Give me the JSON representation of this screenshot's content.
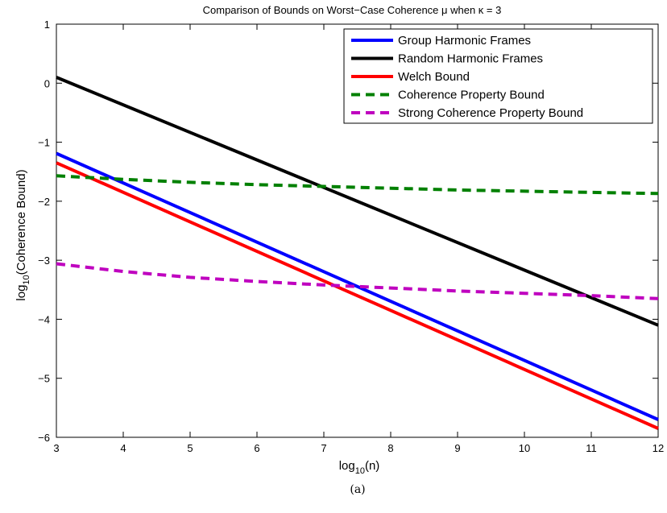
{
  "chart_data": {
    "type": "line",
    "title": "Comparison of Bounds on Worst−Case Coherence μ when κ = 3",
    "xlabel": "log10(n)",
    "ylabel": "log10(Coherence Bound)",
    "xlabel_parts": {
      "prefix": "log",
      "sub": "10",
      "suffix": "(n)"
    },
    "ylabel_parts": {
      "prefix": "log",
      "sub": "10",
      "suffix": "(Coherence Bound)"
    },
    "xlim": [
      3,
      12
    ],
    "ylim": [
      -6,
      1
    ],
    "xticks": [
      "3",
      "4",
      "5",
      "6",
      "7",
      "8",
      "9",
      "10",
      "11",
      "12"
    ],
    "yticks": [
      "1",
      "0",
      "−1",
      "−2",
      "−3",
      "−4",
      "−5",
      "−6"
    ],
    "grid": false,
    "legend_position": "top-right",
    "series": [
      {
        "name": "Group Harmonic Frames",
        "color": "#0000ff",
        "style": "solid",
        "x": [
          3,
          12
        ],
        "y": [
          -1.19,
          -5.7
        ]
      },
      {
        "name": "Random Harmonic Frames",
        "color": "#000000",
        "style": "solid",
        "x": [
          3,
          12
        ],
        "y": [
          0.1,
          -4.1
        ]
      },
      {
        "name": "Welch Bound",
        "color": "#ff0000",
        "style": "solid",
        "x": [
          3,
          12
        ],
        "y": [
          -1.35,
          -5.85
        ]
      },
      {
        "name": "Coherence Property Bound",
        "color": "#008000",
        "style": "dashed",
        "x": [
          3,
          4,
          5,
          6,
          7,
          8,
          9,
          10,
          11,
          12
        ],
        "y": [
          -1.57,
          -1.63,
          -1.68,
          -1.72,
          -1.75,
          -1.78,
          -1.81,
          -1.83,
          -1.85,
          -1.87
        ]
      },
      {
        "name": "Strong Coherence Property Bound",
        "color": "#bf00bf",
        "style": "dashed",
        "x": [
          3,
          4,
          5,
          6,
          7,
          8,
          9,
          10,
          11,
          12
        ],
        "y": [
          -3.06,
          -3.19,
          -3.29,
          -3.36,
          -3.42,
          -3.47,
          -3.52,
          -3.56,
          -3.6,
          -3.65
        ]
      }
    ]
  },
  "caption": "(a)"
}
